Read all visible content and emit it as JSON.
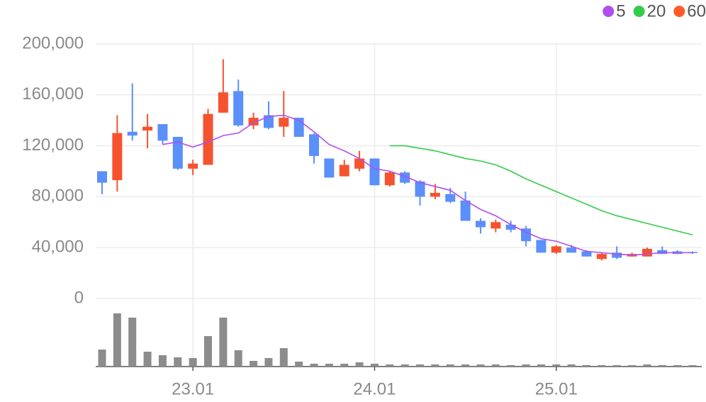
{
  "chart_data": {
    "type": "candlestick",
    "categories": [
      null,
      null,
      null,
      null,
      null,
      null,
      "23.01",
      null,
      null,
      null,
      null,
      null,
      null,
      null,
      null,
      null,
      null,
      null,
      "24.01",
      null,
      null,
      null,
      null,
      null,
      null,
      null,
      null,
      null,
      null,
      null,
      "25.01",
      null,
      null,
      null,
      null,
      null,
      null,
      null,
      null,
      null
    ],
    "open": [
      100000,
      93000,
      131000,
      132000,
      137000,
      127000,
      102000,
      105000,
      146000,
      163000,
      136000,
      144000,
      135000,
      142000,
      129000,
      110000,
      96000,
      102000,
      110000,
      89000,
      99000,
      92000,
      80000,
      82000,
      77000,
      61000,
      55000,
      58000,
      55000,
      46000,
      36000,
      40000,
      37000,
      31000,
      36000,
      33000,
      33000,
      38000,
      37000,
      36500
    ],
    "high": [
      100000,
      144000,
      169000,
      145000,
      137000,
      127000,
      109000,
      149000,
      188000,
      172000,
      146000,
      155000,
      163000,
      142000,
      130000,
      110000,
      109000,
      116000,
      110000,
      100000,
      100000,
      93000,
      90000,
      87000,
      84000,
      63000,
      62000,
      61000,
      57000,
      46000,
      42000,
      42000,
      38000,
      36000,
      41000,
      36000,
      40000,
      41000,
      38000,
      37000
    ],
    "low": [
      82000,
      84000,
      124000,
      118000,
      121000,
      101000,
      97000,
      105000,
      146000,
      135000,
      133000,
      133000,
      127000,
      127000,
      106000,
      95000,
      96000,
      100000,
      89000,
      88000,
      90000,
      73000,
      78000,
      75000,
      61000,
      51000,
      52000,
      52000,
      41000,
      36000,
      35000,
      36000,
      33000,
      30000,
      31000,
      33000,
      33000,
      35000,
      35000,
      35000
    ],
    "close": [
      91000,
      130000,
      128000,
      135000,
      124000,
      102000,
      106000,
      145000,
      162000,
      136000,
      142000,
      134000,
      142000,
      127000,
      112000,
      95000,
      105000,
      110000,
      89000,
      99000,
      91000,
      80000,
      83000,
      76000,
      61000,
      56000,
      60000,
      54000,
      45000,
      36000,
      41000,
      36000,
      33000,
      35000,
      32000,
      35000,
      39000,
      35000,
      35000,
      36000
    ],
    "up_color": "#f5532f",
    "down_color": "#5b8ff9",
    "volume": {
      "color": "#8c8c8c",
      "values": [
        24,
        75,
        69,
        21,
        16,
        13,
        12,
        43,
        69,
        23,
        8,
        12,
        26,
        7,
        4,
        4,
        4,
        6,
        4,
        3,
        3,
        3,
        3,
        3,
        3,
        3,
        3,
        2,
        3,
        3,
        3,
        3,
        2,
        2,
        2,
        2,
        3,
        2,
        2,
        2
      ]
    },
    "series": [
      {
        "name": "5",
        "color": "#b04ef0",
        "values": [
          null,
          null,
          null,
          null,
          121000,
          123000,
          119000,
          123000,
          128000,
          130000,
          138000,
          143000,
          144000,
          140000,
          131000,
          121000,
          116000,
          110000,
          102000,
          100000,
          96000,
          91000,
          88000,
          85000,
          77000,
          70000,
          65000,
          58000,
          52000,
          47000,
          45000,
          41000,
          37000,
          36000,
          35000,
          34000,
          35000,
          36000,
          36000,
          36000
        ]
      },
      {
        "name": "20",
        "color": "#33cc4a",
        "values": [
          null,
          null,
          null,
          null,
          null,
          null,
          null,
          null,
          null,
          null,
          null,
          null,
          null,
          null,
          null,
          null,
          null,
          null,
          null,
          120000,
          120000,
          118000,
          116000,
          113000,
          110000,
          108000,
          105000,
          100000,
          94000,
          89000,
          84000,
          79000,
          74000,
          69000,
          65000,
          62000,
          59000,
          56000,
          53000,
          50000
        ]
      },
      {
        "name": "60",
        "color": "#ff5a26",
        "values": [
          null,
          null,
          null,
          null,
          null,
          null,
          null,
          null,
          null,
          null,
          null,
          null,
          null,
          null,
          null,
          null,
          null,
          null,
          null,
          null,
          null,
          null,
          null,
          null,
          null,
          null,
          null,
          null,
          null,
          null,
          null,
          null,
          null,
          null,
          null,
          null,
          null,
          null,
          null,
          null
        ]
      }
    ],
    "ylim": [
      0,
      200000
    ],
    "yticks": [
      0,
      {
        "value": 40000,
        "label": "40,000"
      },
      {
        "value": 80000,
        "label": "80,000"
      },
      {
        "value": 120000,
        "label": "120,000"
      },
      {
        "value": 160000,
        "label": "160,000"
      },
      {
        "value": 200000,
        "label": "200,000"
      }
    ],
    "grid": true,
    "legend": "top-right"
  }
}
